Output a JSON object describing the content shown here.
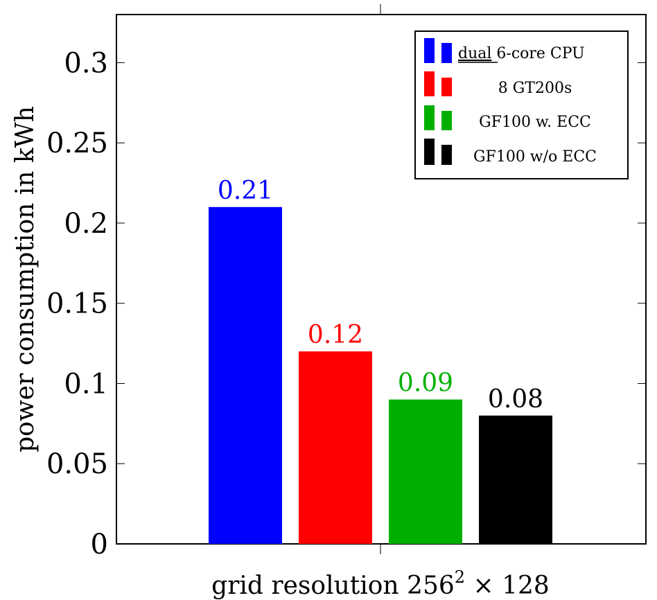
{
  "chart_data": {
    "type": "bar",
    "title": "",
    "xlabel": "grid resolution 256",
    "xlabel_superscript": "2",
    "xlabel_suffix": " × 128",
    "ylabel": "power consumption in kWh",
    "ylim": [
      0,
      0.33
    ],
    "yticks": [
      0,
      0.05,
      0.1,
      0.15,
      0.2,
      0.25,
      0.3
    ],
    "ytick_labels": [
      "0",
      "0.05",
      "0.1",
      "0.15",
      "0.2",
      "0.25",
      "0.3"
    ],
    "categories": [
      "grid resolution 256² × 128"
    ],
    "series": [
      {
        "name": "dual 6-core CPU",
        "name_underlined": "dual",
        "name_rest": " 6-core CPU",
        "values": [
          0.21
        ],
        "label": "0.21",
        "color": "#0000ff"
      },
      {
        "name": "8 GT200s",
        "values": [
          0.12
        ],
        "label": "0.12",
        "color": "#ff0000"
      },
      {
        "name": "GF100 w. ECC",
        "values": [
          0.09
        ],
        "label": "0.09",
        "color": "#00b000"
      },
      {
        "name": "GF100 w/o ECC",
        "values": [
          0.08
        ],
        "label": "0.08",
        "color": "#000000"
      }
    ],
    "legend": "top-right",
    "grid": false
  }
}
